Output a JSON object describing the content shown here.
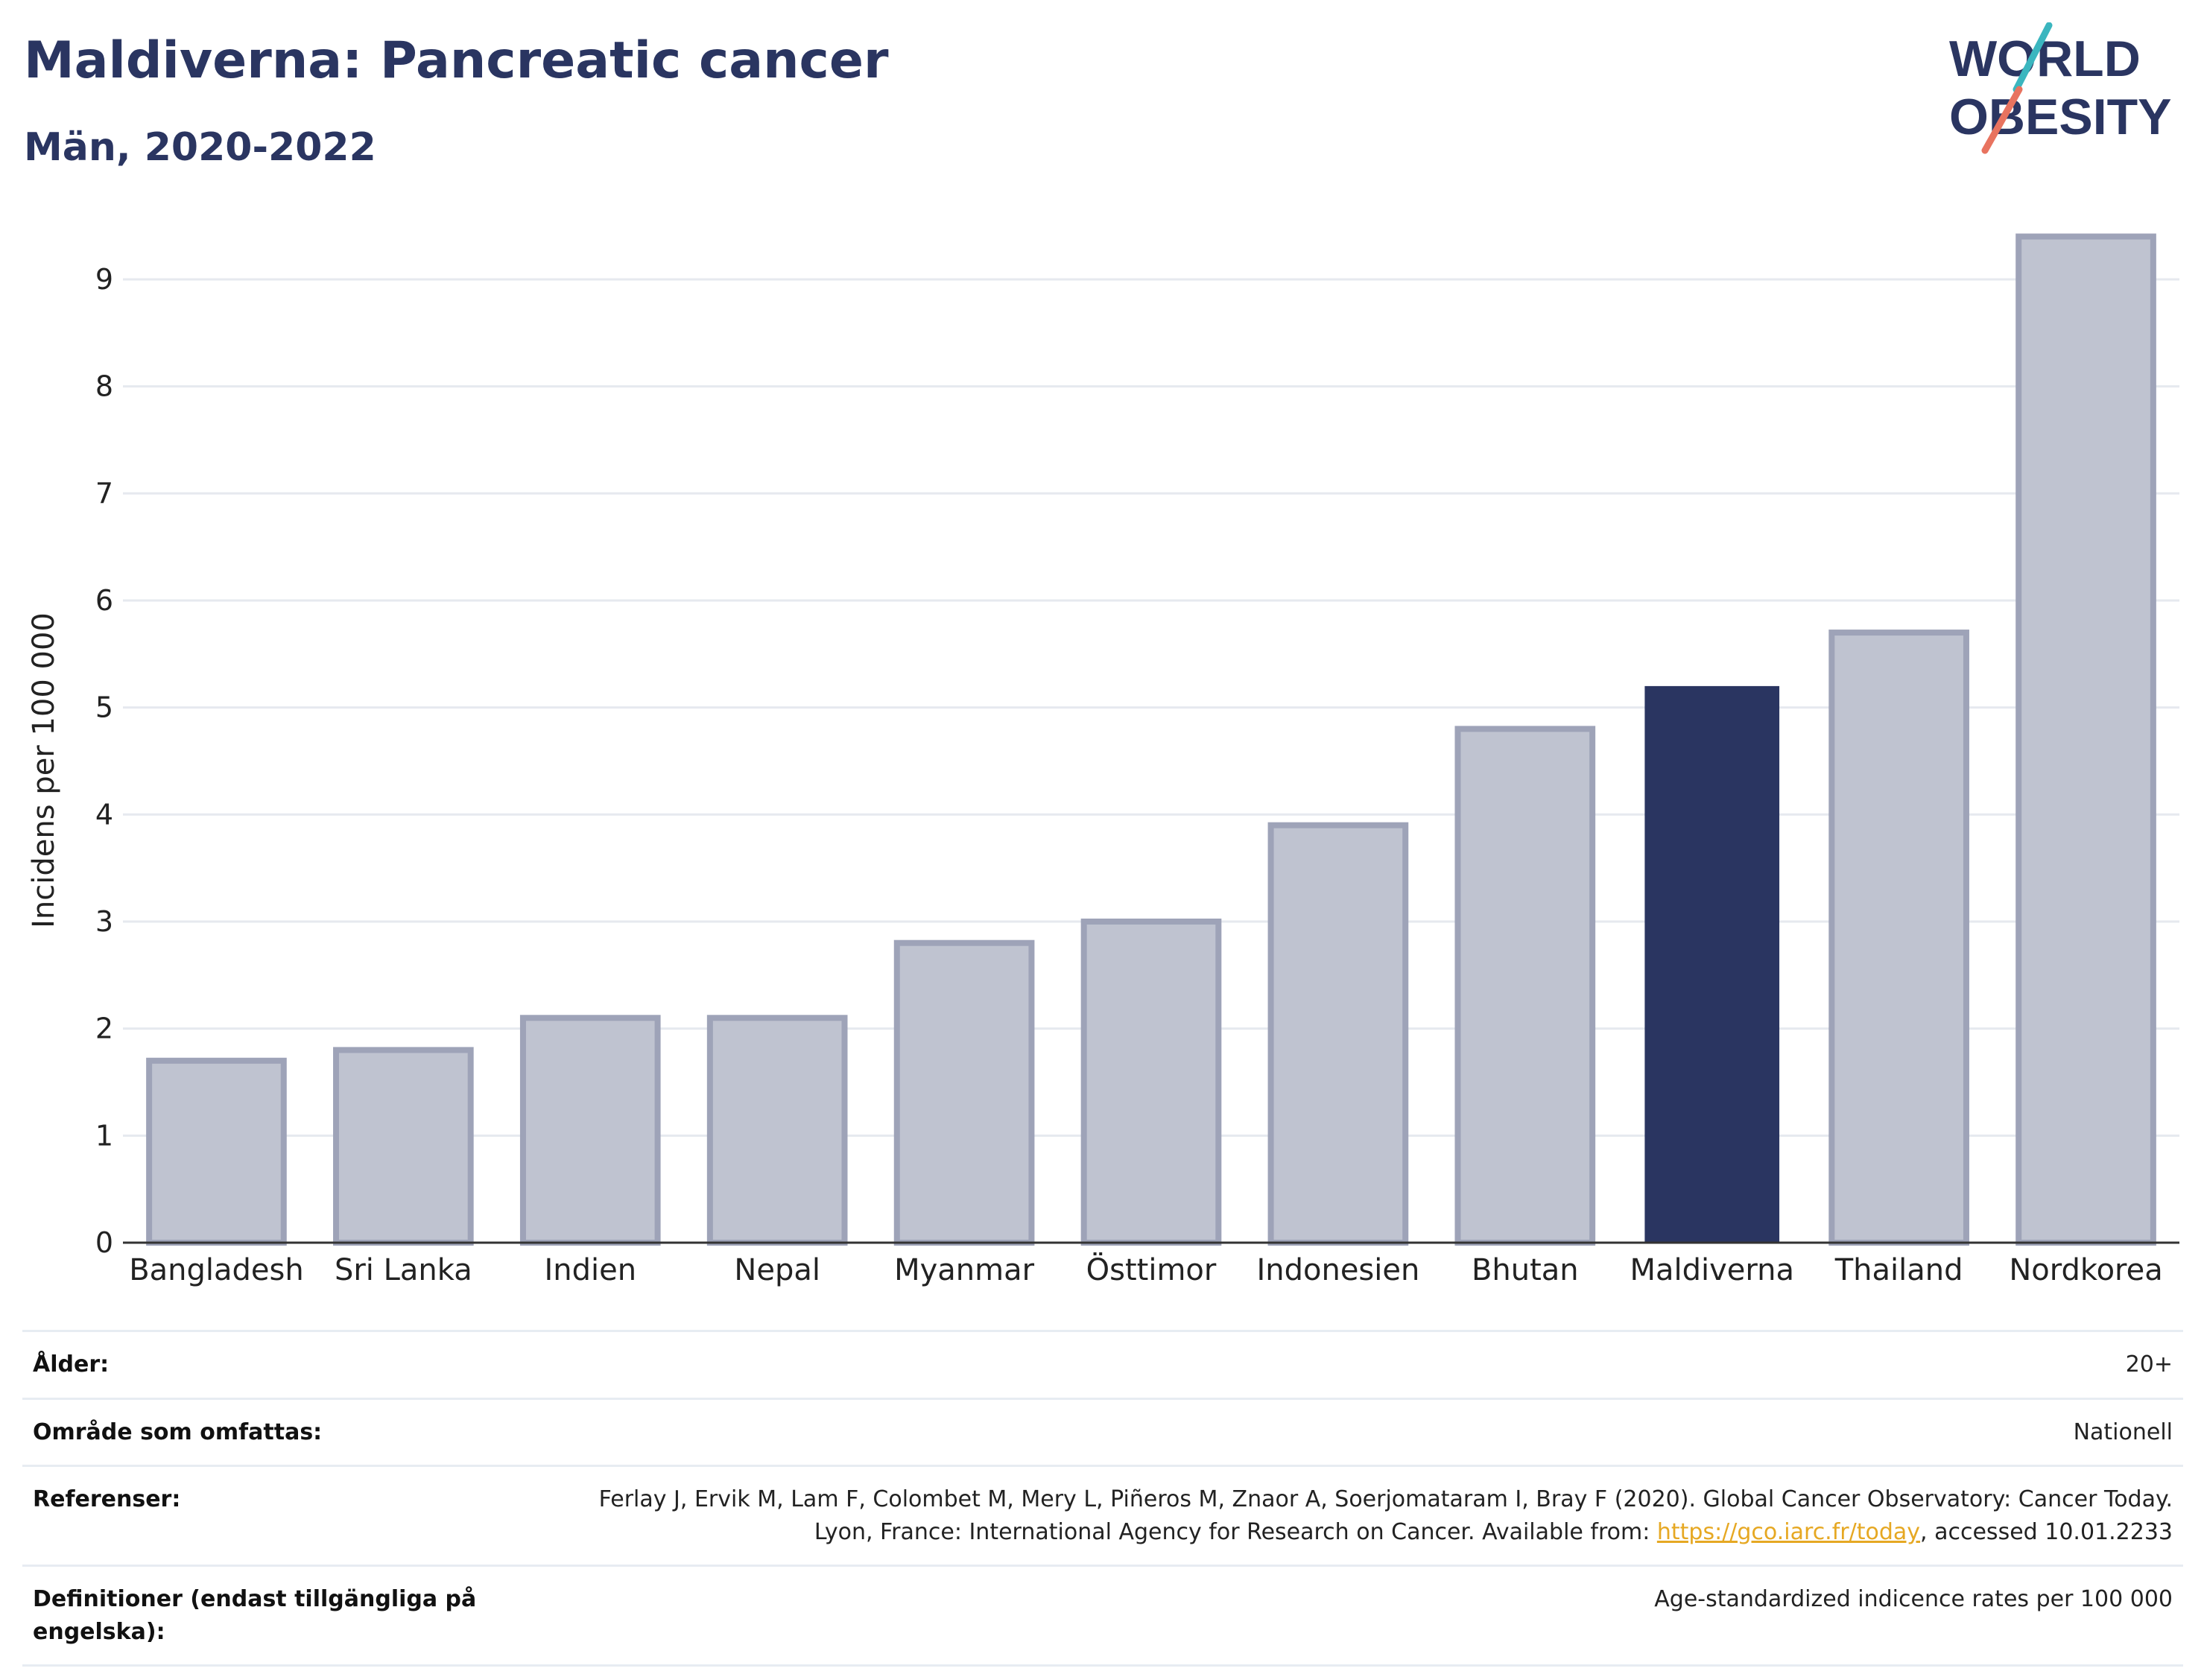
{
  "header": {
    "title": "Maldiverna: Pancreatic cancer",
    "subtitle": "Män, 2020-2022"
  },
  "logo": {
    "line1": "WORLD",
    "line2": "OBESITY"
  },
  "chart_data": {
    "type": "bar",
    "categories": [
      "Bangladesh",
      "Sri Lanka",
      "Indien",
      "Nepal",
      "Myanmar",
      "Östtimor",
      "Indonesien",
      "Bhutan",
      "Maldiverna",
      "Thailand",
      "Nordkorea"
    ],
    "values": [
      1.7,
      1.8,
      2.1,
      2.1,
      2.8,
      3.0,
      3.9,
      4.8,
      5.2,
      5.7,
      9.4
    ],
    "highlight": "Maldiverna",
    "ylabel": "Incidens per 100 000",
    "ylim": [
      0,
      9.8
    ],
    "yticks": [
      0,
      1,
      2,
      3,
      4,
      5,
      6,
      7,
      8,
      9
    ],
    "grid": true,
    "colors": {
      "bar": "#bfc3d0",
      "bar_edge": "#9ea3b8",
      "highlight": "#2a3561",
      "grid": "#e6e9ef",
      "axis": "#333333"
    }
  },
  "info": {
    "age_label": "Ålder:",
    "age_value": "20+",
    "area_label": "Område som omfattas:",
    "area_value": "Nationell",
    "ref_label": "Referenser:",
    "ref_text1": "Ferlay J, Ervik M, Lam F, Colombet M, Mery L, Piñeros M, Znaor A, Soerjomataram I, Bray F (2020). Global Cancer Observatory: Cancer Today. Lyon, France: International Agency for Research on Cancer. Available from: ",
    "ref_link": "https://gco.iarc.fr/today",
    "ref_text2": ", accessed 10.01.2233",
    "def_label": "Definitioner (endast tillgängliga på engelska):",
    "def_value": "Age-standardized indicence rates per 100 000"
  }
}
